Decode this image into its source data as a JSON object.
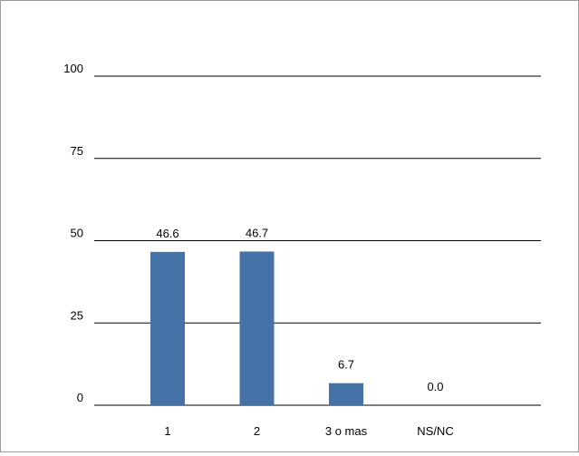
{
  "chart_data": {
    "type": "bar",
    "categories": [
      "1",
      "2",
      "3 o mas",
      "NS/NC"
    ],
    "values": [
      46.6,
      46.7,
      6.7,
      0.0
    ],
    "value_labels": [
      "46.6",
      "46.7",
      "6.7",
      "0.0"
    ],
    "y_ticks": [
      0,
      25,
      50,
      75,
      100
    ],
    "ylim": [
      0,
      100
    ],
    "grid": true,
    "legend": "none",
    "colors": {
      "bar": "#4572a7",
      "grid": "#000000",
      "text": "#000000"
    }
  }
}
